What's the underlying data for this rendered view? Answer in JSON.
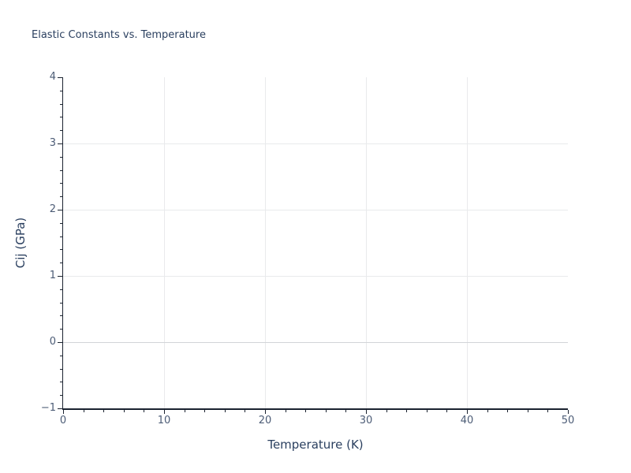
{
  "chart_data": {
    "type": "scatter",
    "title": "Elastic Constants vs. Temperature",
    "xlabel": "Temperature (K)",
    "ylabel": "Cij (GPa)",
    "xlim": [
      0,
      50
    ],
    "ylim": [
      -1,
      4
    ],
    "grid": true,
    "legend": "none",
    "series": [],
    "x_ticks": [
      {
        "v": 0,
        "label": "0"
      },
      {
        "v": 10,
        "label": "10"
      },
      {
        "v": 20,
        "label": "20"
      },
      {
        "v": 30,
        "label": "30"
      },
      {
        "v": 40,
        "label": "40"
      },
      {
        "v": 50,
        "label": "50"
      }
    ],
    "y_ticks": [
      {
        "v": -1,
        "label": "−1"
      },
      {
        "v": 0,
        "label": "0"
      },
      {
        "v": 1,
        "label": "1"
      },
      {
        "v": 2,
        "label": "2"
      },
      {
        "v": 3,
        "label": "3"
      },
      {
        "v": 4,
        "label": "4"
      }
    ],
    "x_minor_step": 2,
    "y_minor_step": 0.2,
    "x_gridlines": [
      10,
      20,
      30,
      40
    ],
    "y_gridlines": [
      1,
      2,
      3
    ],
    "zeroline_y": 0
  },
  "colors": {
    "background": "#ffffff",
    "title_text": "#2a3f5f",
    "axis_title_text": "#2a3f5f",
    "tick_text": "#4c5c76",
    "axis_line": "#1b2330",
    "gridline": "#e9eaec",
    "zeroline": "#d2d4d8"
  }
}
